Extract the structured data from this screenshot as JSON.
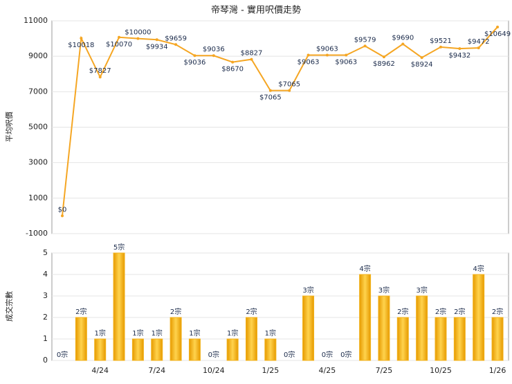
{
  "chart_data": [
    {
      "type": "line",
      "title": "帝琴灣 - 實用呎價走勢",
      "y_label": "平均呎價",
      "color": "#f5a623",
      "values": [
        0,
        10018,
        7827,
        10070,
        10000,
        9934,
        9659,
        9036,
        9036,
        8670,
        8827,
        7065,
        7065,
        9063,
        9063,
        9063,
        9579,
        8962,
        9690,
        8924,
        9521,
        9432,
        9472,
        10649
      ],
      "value_labels": [
        "$0",
        "$10018",
        "$7827",
        "$10070",
        "$10000",
        "$9934",
        "$9659",
        "$9036",
        "$9036",
        "$8670",
        "$8827",
        "$7065",
        "$7065",
        "$9063",
        "$9063",
        "$9063",
        "$9579",
        "$8962",
        "$9690",
        "$8924",
        "$9521",
        "$9432",
        "$9472",
        "$10649"
      ],
      "ylim": [
        -1000,
        11000
      ],
      "yticks": [
        -1000,
        1000,
        3000,
        5000,
        7000,
        9000,
        11000
      ],
      "grid": true
    },
    {
      "type": "bar",
      "y_label": "成交宗數",
      "color": "#f2b21c",
      "categories": [
        null,
        null,
        "4/24",
        null,
        null,
        "7/24",
        null,
        null,
        "10/24",
        null,
        null,
        "1/25",
        null,
        null,
        "4/25",
        null,
        null,
        "7/25",
        null,
        null,
        "10/25",
        null,
        null,
        "1/26"
      ],
      "values": [
        0,
        2,
        1,
        5,
        1,
        1,
        2,
        1,
        0,
        1,
        2,
        1,
        0,
        3,
        0,
        0,
        4,
        3,
        2,
        3,
        2,
        2,
        4,
        2
      ],
      "value_labels": [
        "0宗",
        "2宗",
        "1宗",
        "5宗",
        "1宗",
        "1宗",
        "2宗",
        "1宗",
        "0宗",
        "1宗",
        "2宗",
        "1宗",
        "0宗",
        "3宗",
        "0宗",
        "0宗",
        "4宗",
        "3宗",
        "2宗",
        "3宗",
        "2宗",
        "2宗",
        "4宗",
        "2宗"
      ],
      "ylim": [
        0,
        5
      ],
      "yticks": [
        0,
        1,
        2,
        3,
        4,
        5
      ],
      "grid": true
    }
  ]
}
